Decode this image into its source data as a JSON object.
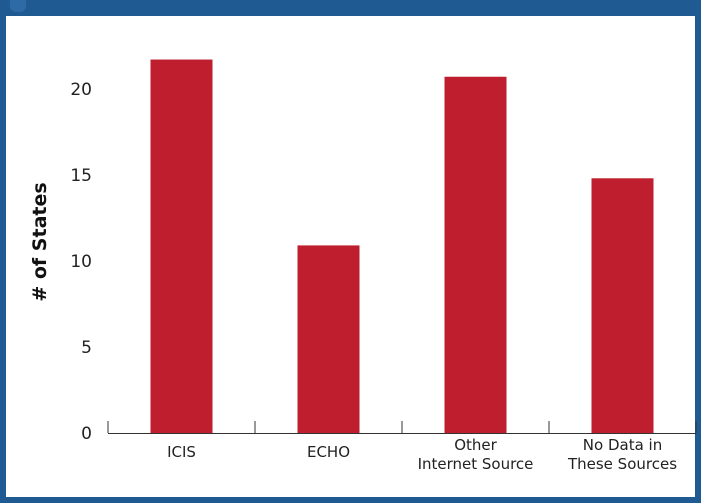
{
  "chart_data": {
    "type": "bar",
    "categories": [
      [
        "ICIS"
      ],
      [
        "ECHO"
      ],
      [
        "Other",
        "Internet Source"
      ],
      [
        "No Data in",
        "These Sources"
      ]
    ],
    "values": [
      21.7,
      10.9,
      20.7,
      14.8
    ],
    "title": "",
    "xlabel": "",
    "ylabel": "# of States",
    "ylim": [
      0,
      23.3
    ],
    "yticks": [
      0,
      5,
      10,
      15,
      20
    ],
    "grid": false,
    "bar_color": "#be1e2d",
    "frame_color": "#1f5a93"
  }
}
